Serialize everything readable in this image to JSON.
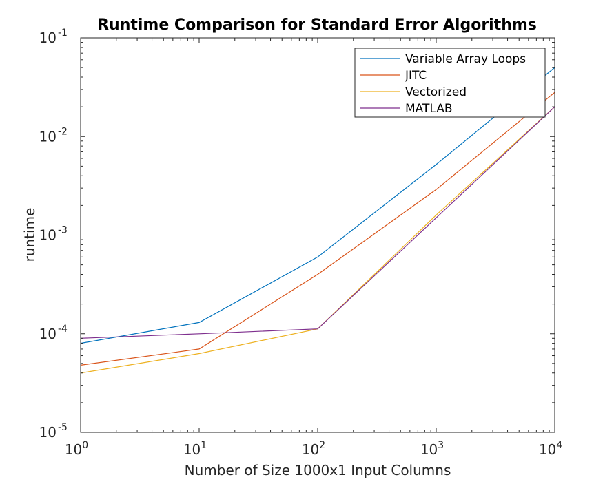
{
  "chart_data": {
    "type": "line",
    "title": "Runtime Comparison for Standard Error Algorithms",
    "xlabel": "Number of Size 1000x1 Input Columns",
    "ylabel": "runtime",
    "x": [
      1,
      10,
      100,
      1000,
      10000
    ],
    "xscale": "log",
    "yscale": "log",
    "xlim": [
      1,
      10000
    ],
    "ylim": [
      1e-05,
      0.1
    ],
    "x_ticks": [
      {
        "base": "10",
        "exp": "0",
        "value": 1
      },
      {
        "base": "10",
        "exp": "1",
        "value": 10
      },
      {
        "base": "10",
        "exp": "2",
        "value": 100
      },
      {
        "base": "10",
        "exp": "3",
        "value": 1000
      },
      {
        "base": "10",
        "exp": "4",
        "value": 10000
      }
    ],
    "y_ticks": [
      {
        "base": "10",
        "exp": "-5",
        "value": 1e-05
      },
      {
        "base": "10",
        "exp": "-4",
        "value": 0.0001
      },
      {
        "base": "10",
        "exp": "-3",
        "value": 0.001
      },
      {
        "base": "10",
        "exp": "-2",
        "value": 0.01
      },
      {
        "base": "10",
        "exp": "-1",
        "value": 0.1
      }
    ],
    "grid": false,
    "legend_position": "top-right",
    "series": [
      {
        "name": "Variable Array Loops",
        "color": "#0072BD",
        "values": [
          8e-05,
          0.00013,
          0.0006,
          0.0052,
          0.05
        ]
      },
      {
        "name": "JITC",
        "color": "#D95319",
        "values": [
          4.8e-05,
          7e-05,
          0.0004,
          0.0029,
          0.028
        ]
      },
      {
        "name": "Vectorized",
        "color": "#EDB120",
        "values": [
          4e-05,
          6.3e-05,
          0.000112,
          0.0016,
          0.02
        ]
      },
      {
        "name": "MATLAB",
        "color": "#7E2F8E",
        "values": [
          9e-05,
          0.0001,
          0.000112,
          0.0015,
          0.02
        ]
      }
    ]
  }
}
